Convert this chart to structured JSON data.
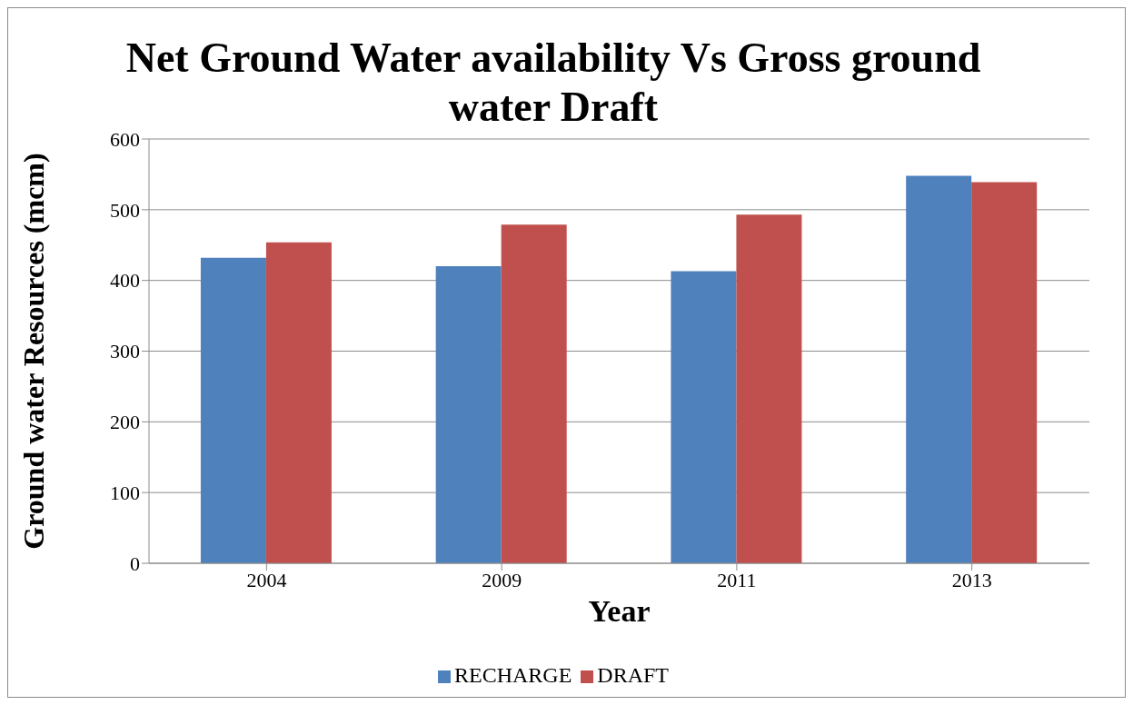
{
  "chart_data": {
    "type": "bar",
    "title": "Net Ground Water availability Vs Gross ground water Draft",
    "xlabel": "Year",
    "ylabel": "Ground water Resources (mcm)",
    "categories": [
      "2004",
      "2009",
      "2011",
      "2013"
    ],
    "series": [
      {
        "name": "RECHARGE",
        "color": "#4f81bd",
        "values": [
          432,
          420,
          413,
          548
        ]
      },
      {
        "name": "DRAFT",
        "color": "#c0504d",
        "values": [
          454,
          479,
          493,
          539
        ]
      }
    ],
    "ylim": [
      0,
      600
    ],
    "yticks": [
      0,
      100,
      200,
      300,
      400,
      500,
      600
    ],
    "grid": "y",
    "legend": "bottom"
  }
}
